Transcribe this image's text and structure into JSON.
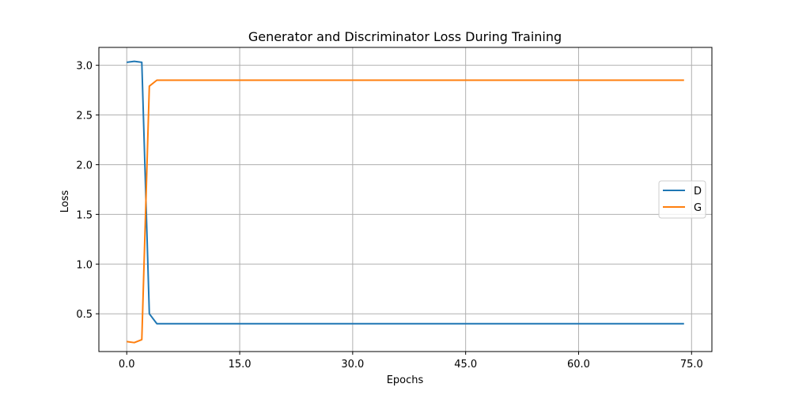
{
  "chart_data": {
    "type": "line",
    "title": "Generator and Discriminator Loss During Training",
    "xlabel": "Epochs",
    "ylabel": "Loss",
    "xlim": [
      -3.7,
      77.7
    ],
    "ylim": [
      0.12,
      3.18
    ],
    "xticks": [
      0,
      15,
      30,
      45,
      60,
      75
    ],
    "xtick_labels": [
      "0.0",
      "15.0",
      "30.0",
      "45.0",
      "60.0",
      "75.0"
    ],
    "yticks": [
      0.5,
      1.0,
      1.5,
      2.0,
      2.5,
      3.0
    ],
    "ytick_labels": [
      "0.5",
      "1.0",
      "1.5",
      "2.0",
      "2.5",
      "3.0"
    ],
    "grid": true,
    "legend_position": "center-right",
    "series": [
      {
        "name": "D",
        "color": "#1f77b4",
        "x": [
          0,
          1,
          2,
          3,
          4,
          74
        ],
        "y": [
          3.03,
          3.04,
          3.03,
          0.5,
          0.4,
          0.4
        ]
      },
      {
        "name": "G",
        "color": "#ff7f0e",
        "x": [
          0,
          1,
          2,
          3,
          4,
          74
        ],
        "y": [
          0.22,
          0.21,
          0.24,
          2.79,
          2.85,
          2.85
        ]
      }
    ]
  }
}
